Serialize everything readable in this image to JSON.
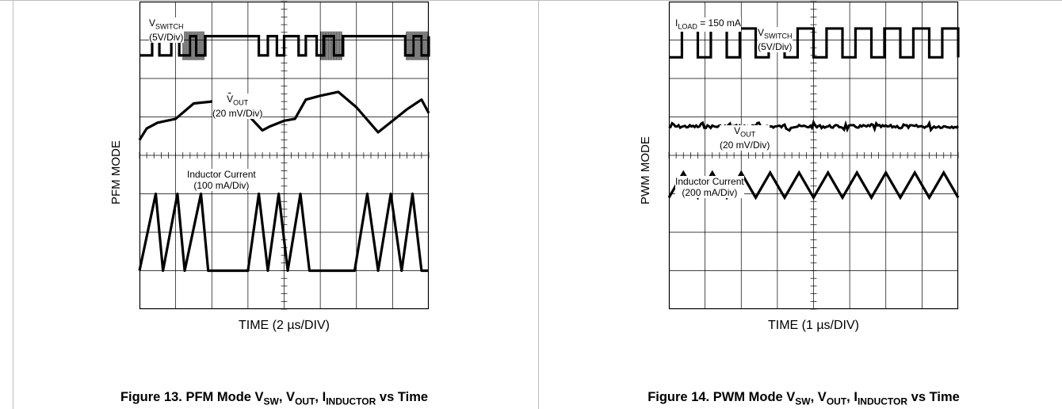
{
  "chart_data": [
    {
      "type": "line",
      "mode_label": "PFM MODE",
      "xlabel": "TIME (2 µs/DIV)",
      "caption": {
        "prefix": "Figure 13. PFM Mode V",
        "sub1": "SW",
        "mid1": ", V",
        "sub2": "OUT",
        "mid2": ", I",
        "sub3": "INDUCTOR",
        "suffix": " vs Time"
      },
      "grid": {
        "xdivs": 8,
        "ydivs": 8
      },
      "traces": [
        {
          "name": "VSWITCH",
          "label_main": "V",
          "label_sub": "SWITCH",
          "label_scale": "(5V/Div)",
          "kind": "square",
          "low_div": 1.4,
          "high_div": 0.9,
          "edges": [
            0.0,
            0.35,
            0.55,
            0.88,
            1.1,
            1.4,
            1.57,
            1.82,
            3.3,
            3.55,
            3.8,
            4.0,
            4.4,
            4.6,
            4.9,
            5.1,
            5.38,
            5.63,
            7.35,
            7.58,
            7.8,
            8.0
          ],
          "start_high": false,
          "ringing_at": [
            1.82,
            5.63,
            8.0
          ]
        },
        {
          "name": "VOUT",
          "label_main": "V",
          "label_sub": "OUT",
          "label_scale": "(20 mV/Div)",
          "kind": "polyline",
          "points": [
            [
              0.0,
              3.6
            ],
            [
              0.2,
              3.3
            ],
            [
              0.5,
              3.15
            ],
            [
              1.0,
              3.05
            ],
            [
              1.5,
              2.65
            ],
            [
              2.0,
              2.6
            ],
            [
              2.5,
              2.4
            ],
            [
              3.0,
              2.95
            ],
            [
              3.4,
              3.35
            ],
            [
              3.6,
              3.25
            ],
            [
              4.0,
              3.1
            ],
            [
              4.3,
              3.05
            ],
            [
              4.6,
              2.55
            ],
            [
              5.0,
              2.45
            ],
            [
              5.5,
              2.35
            ],
            [
              6.0,
              2.75
            ],
            [
              6.6,
              3.4
            ],
            [
              7.0,
              3.1
            ],
            [
              7.4,
              2.8
            ],
            [
              7.8,
              2.55
            ],
            [
              8.0,
              2.9
            ]
          ]
        },
        {
          "name": "Inductor Current",
          "label_main": "Inductor Current",
          "label_sub": "",
          "label_scale": "(100 mA/Div)",
          "kind": "polyline",
          "points": [
            [
              0.0,
              7.0
            ],
            [
              0.45,
              5.0
            ],
            [
              0.65,
              7.0
            ],
            [
              1.05,
              5.0
            ],
            [
              1.25,
              7.0
            ],
            [
              1.7,
              5.0
            ],
            [
              1.9,
              7.0
            ],
            [
              3.0,
              7.0
            ],
            [
              3.3,
              5.0
            ],
            [
              3.55,
              7.0
            ],
            [
              3.85,
              5.0
            ],
            [
              4.1,
              7.0
            ],
            [
              4.45,
              5.0
            ],
            [
              4.7,
              7.0
            ],
            [
              5.95,
              7.0
            ],
            [
              6.3,
              5.0
            ],
            [
              6.6,
              7.0
            ],
            [
              6.95,
              5.0
            ],
            [
              7.25,
              7.0
            ],
            [
              7.55,
              5.0
            ],
            [
              7.8,
              7.0
            ],
            [
              8.0,
              7.0
            ]
          ]
        }
      ]
    },
    {
      "type": "line",
      "mode_label": "PWM MODE",
      "xlabel": "TIME (1 µs/DIV)",
      "caption": {
        "prefix": "Figure 14. PWM Mode V",
        "sub1": "SW",
        "mid1": ", V",
        "sub2": "OUT",
        "mid2": ", I",
        "sub3": "INDUCTOR",
        "suffix": " vs Time"
      },
      "annotation": {
        "main": "I",
        "sub": "LOAD",
        "rest": " = 150 mA"
      },
      "grid": {
        "xdivs": 8,
        "ydivs": 8
      },
      "traces": [
        {
          "name": "VSWITCH",
          "label_main": "V",
          "label_sub": "SWITCH",
          "label_scale": "(5V/Div)",
          "kind": "periodic-square",
          "low_div": 1.45,
          "high_div": 0.7,
          "period_div": 0.8,
          "duty": 0.55
        },
        {
          "name": "VOUT",
          "label_main": "V",
          "label_sub": "OUT",
          "label_scale": "(20 mV/Div)",
          "kind": "noisy-flat",
          "level_div": 3.25
        },
        {
          "name": "Inductor Current",
          "label_main": "Inductor Current",
          "label_sub": "",
          "label_scale": "(200 mA/Div)",
          "kind": "triangle",
          "top_div": 4.45,
          "bottom_div": 5.1,
          "period_div": 0.8
        }
      ]
    }
  ]
}
